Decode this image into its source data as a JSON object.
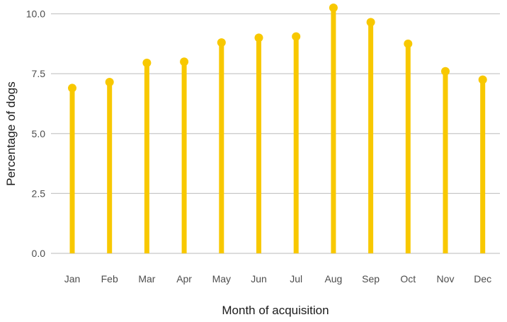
{
  "chart_data": {
    "type": "lollipop",
    "title": "",
    "xlabel": "Month of acquisition",
    "ylabel": "Percentage of dogs",
    "ylim": [
      0,
      10.2
    ],
    "yticks": [
      "0.0",
      "2.5",
      "5.0",
      "7.5",
      "10.0"
    ],
    "ytick_values": [
      0,
      2.5,
      5,
      7.5,
      10
    ],
    "grid": "horizontal",
    "legend": "none",
    "categories": [
      "Jan",
      "Feb",
      "Mar",
      "Apr",
      "May",
      "Jun",
      "Jul",
      "Aug",
      "Sep",
      "Oct",
      "Nov",
      "Dec"
    ],
    "values": [
      6.9,
      7.15,
      7.95,
      8.0,
      8.8,
      9.0,
      9.05,
      10.25,
      9.65,
      8.75,
      7.6,
      7.25
    ],
    "colors": {
      "series": "#f8c800",
      "grid": "#c8c8c8",
      "tick_text": "#4d4d4d",
      "axis_title": "#1a1a1a"
    }
  }
}
